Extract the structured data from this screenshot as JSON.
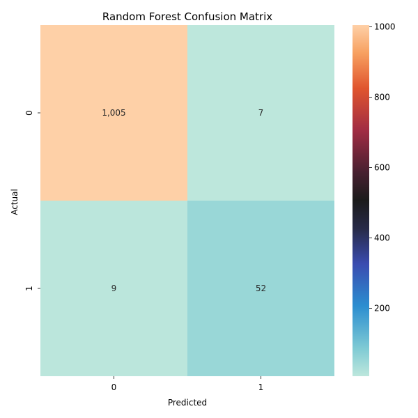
{
  "chart_data": {
    "type": "heatmap",
    "title": "Random Forest Confusion Matrix",
    "xlabel": "Predicted",
    "ylabel": "Actual",
    "x_categories": [
      "0",
      "1"
    ],
    "y_categories": [
      "0",
      "1"
    ],
    "values": [
      [
        1005,
        7
      ],
      [
        9,
        52
      ]
    ],
    "cell_labels": [
      [
        "1,005",
        "7"
      ],
      [
        "9",
        "52"
      ]
    ],
    "colorbar": {
      "range": [
        7,
        1005
      ],
      "ticks": [
        200,
        400,
        600,
        800,
        1000
      ],
      "tick_labels": [
        "200",
        "400",
        "600",
        "800",
        "1000"
      ]
    },
    "colormap": "icefire"
  }
}
